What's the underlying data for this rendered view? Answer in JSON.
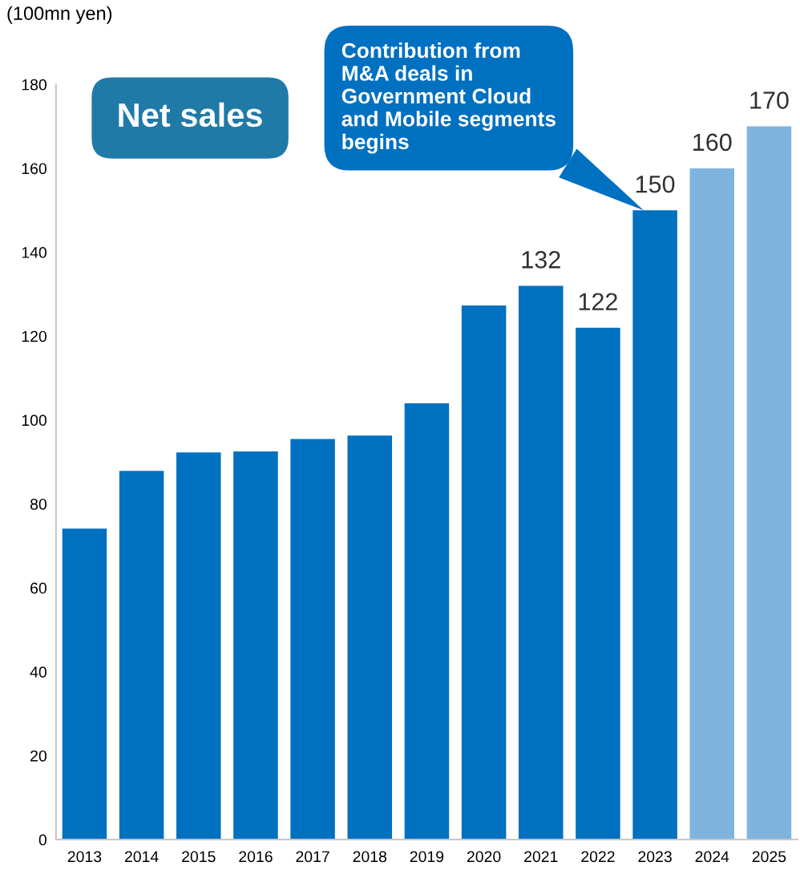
{
  "chart_data": {
    "type": "bar",
    "ylabel": "(100mn yen)",
    "categories": [
      "2013",
      "2014",
      "2015",
      "2016",
      "2017",
      "2018",
      "2019",
      "2020",
      "2021",
      "2022",
      "2023",
      "2024",
      "2025"
    ],
    "values": [
      74.1,
      87.9,
      92.3,
      92.5,
      95.5,
      96.3,
      104,
      127.3,
      132,
      122,
      150,
      160,
      170
    ],
    "colors": [
      "#0070c0",
      "#0070c0",
      "#0070c0",
      "#0070c0",
      "#0070c0",
      "#0070c0",
      "#0070c0",
      "#0070c0",
      "#0070c0",
      "#0070c0",
      "#0070c0",
      "#7fb4de",
      "#7fb4de"
    ],
    "value_labels": [
      null,
      null,
      null,
      null,
      null,
      null,
      null,
      null,
      "132",
      "122",
      "150",
      "160",
      "170"
    ],
    "ylim": [
      0,
      180
    ],
    "yticks": [
      0,
      20,
      40,
      60,
      80,
      100,
      120,
      140,
      160,
      180
    ],
    "grid": false,
    "annotations": [
      "Net sales",
      "Contribution from\nM&A deals in\nGovernment Cloud\nand Mobile segments\nbegins"
    ]
  }
}
